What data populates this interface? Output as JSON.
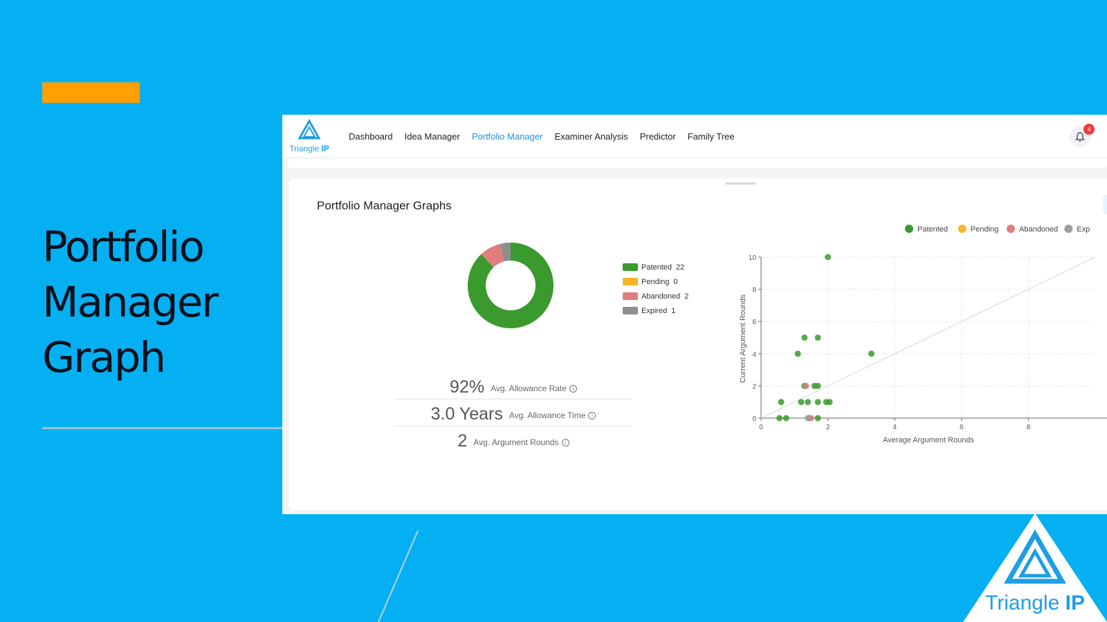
{
  "slide": {
    "title_lines": [
      "Portfolio",
      "Manager",
      "Graph"
    ],
    "accent_color": "#ffa000",
    "background_color": "#05b0f2"
  },
  "app": {
    "logo_text_a": "Triangle ",
    "logo_text_b": "IP",
    "nav": [
      "Dashboard",
      "Idea Manager",
      "Portfolio Manager",
      "Examiner Analysis",
      "Predictor",
      "Family Tree"
    ],
    "active_nav": "Portfolio Manager",
    "notifications_count": "4",
    "card_title": "Portfolio Manager Graphs"
  },
  "donut_legend": [
    {
      "label": "Patented",
      "value": "22",
      "color": "#3a9a2d"
    },
    {
      "label": "Pending",
      "value": "0",
      "color": "#f7b52b"
    },
    {
      "label": "Abandoned",
      "value": "2",
      "color": "#e07d7d"
    },
    {
      "label": "Expired",
      "value": "1",
      "color": "#8e8e8e"
    }
  ],
  "stats": [
    {
      "value": "92%",
      "label": "Avg. Allowance Rate"
    },
    {
      "value": "3.0 Years",
      "label": "Avg. Allowance Time"
    },
    {
      "value": "2",
      "label": "Avg. Argument Rounds"
    }
  ],
  "chart_data": [
    {
      "type": "pie",
      "variant": "donut",
      "categories": [
        "Patented",
        "Pending",
        "Abandoned",
        "Expired"
      ],
      "values": [
        22,
        0,
        2,
        1
      ],
      "colors": [
        "#3a9a2d",
        "#f7b52b",
        "#e07d7d",
        "#8e8e8e"
      ]
    },
    {
      "type": "scatter",
      "xlabel": "Average Argument Rounds",
      "ylabel": "Current Argument Rounds",
      "xlim": [
        0,
        10
      ],
      "ylim": [
        0,
        10
      ],
      "xticks": [
        0,
        2,
        4,
        6,
        8
      ],
      "yticks": [
        0,
        2,
        4,
        6,
        8,
        10
      ],
      "grid": true,
      "diagonal_reference": true,
      "legend": [
        {
          "label": "Patented",
          "color": "#3a9a2d"
        },
        {
          "label": "Pending",
          "color": "#f7b52b"
        },
        {
          "label": "Abandoned",
          "color": "#e07d7d"
        },
        {
          "label": "Exp",
          "color": "#9e9e9e"
        }
      ],
      "series": [
        {
          "name": "Patented",
          "color": "#3a9a2d",
          "points": [
            [
              2.0,
              10
            ],
            [
              1.3,
              5
            ],
            [
              1.7,
              5
            ],
            [
              1.1,
              4
            ],
            [
              3.3,
              4
            ],
            [
              1.3,
              2
            ],
            [
              1.6,
              2
            ],
            [
              1.7,
              2
            ],
            [
              0.6,
              1
            ],
            [
              1.2,
              1
            ],
            [
              1.4,
              1
            ],
            [
              1.7,
              1
            ],
            [
              1.95,
              1
            ],
            [
              2.05,
              1
            ],
            [
              0.55,
              0
            ],
            [
              0.75,
              0
            ],
            [
              1.45,
              0
            ],
            [
              1.7,
              0
            ]
          ]
        },
        {
          "name": "Abandoned",
          "color": "#e07d7d",
          "points": [
            [
              1.35,
              2
            ],
            [
              1.5,
              0
            ]
          ]
        },
        {
          "name": "Expired",
          "color": "#9e9e9e",
          "points": [
            [
              1.4,
              0
            ]
          ]
        }
      ]
    }
  ]
}
